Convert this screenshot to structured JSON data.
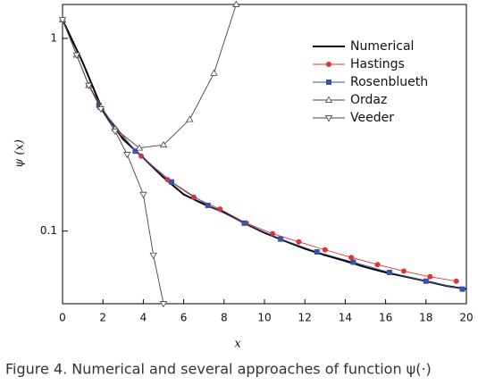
{
  "chart_data": {
    "type": "line",
    "caption": "Figure 4. Numerical and several approaches of function ψ(·)",
    "xlabel": "x",
    "ylabel": "ψ (x)",
    "xlim": [
      0,
      20
    ],
    "xticks": [
      0,
      2,
      4,
      6,
      8,
      10,
      12,
      14,
      16,
      18,
      20
    ],
    "ylim": [
      0.042,
      1.5
    ],
    "yticks": [
      0.1,
      1
    ],
    "log_y": true,
    "legend": "upper right",
    "series": [
      {
        "name": "Numerical",
        "color": "#000000",
        "marker": "none",
        "x": [
          0,
          1,
          2,
          3,
          4,
          5,
          6,
          7,
          8,
          9,
          10,
          11,
          12,
          13,
          14,
          15,
          16,
          17,
          18,
          19,
          20
        ],
        "values": [
          1.25,
          0.75,
          0.42,
          0.3,
          0.24,
          0.19,
          0.155,
          0.138,
          0.125,
          0.11,
          0.098,
          0.089,
          0.081,
          0.075,
          0.07,
          0.065,
          0.061,
          0.058,
          0.055,
          0.052,
          0.05
        ]
      },
      {
        "name": "Hastings",
        "color": "#e03333",
        "marker": "circle",
        "x": [
          1.3,
          2.6,
          3.9,
          5.2,
          6.5,
          7.8,
          9.1,
          10.4,
          11.7,
          13,
          14.3,
          15.6,
          16.9,
          18.2,
          19.5
        ],
        "values": [
          0.57,
          0.34,
          0.245,
          0.185,
          0.15,
          0.13,
          0.11,
          0.097,
          0.088,
          0.08,
          0.073,
          0.067,
          0.062,
          0.058,
          0.055
        ]
      },
      {
        "name": "Rosenblueth",
        "color": "#3a54a4",
        "marker": "square",
        "x": [
          1.8,
          3.6,
          5.4,
          7.2,
          9,
          10.8,
          12.6,
          14.4,
          16.2,
          18,
          19.8
        ],
        "values": [
          0.45,
          0.26,
          0.18,
          0.136,
          0.11,
          0.091,
          0.078,
          0.069,
          0.061,
          0.055,
          0.05
        ]
      },
      {
        "name": "Ordaz",
        "color": "#444444",
        "marker": "triangle-up",
        "x": [
          0,
          0.7,
          1.3,
          1.9,
          2.6,
          3.8,
          5,
          6.3,
          7.5,
          8.6
        ],
        "values": [
          1.25,
          0.82,
          0.57,
          0.44,
          0.34,
          0.27,
          0.28,
          0.38,
          0.66,
          1.5
        ]
      },
      {
        "name": "Veeder",
        "color": "#444444",
        "marker": "triangle-down",
        "x": [
          0,
          0.7,
          1.3,
          1.9,
          2.6,
          3.2,
          4,
          4.5,
          5
        ],
        "values": [
          1.25,
          0.82,
          0.57,
          0.43,
          0.33,
          0.25,
          0.155,
          0.075,
          0.042
        ]
      }
    ]
  }
}
